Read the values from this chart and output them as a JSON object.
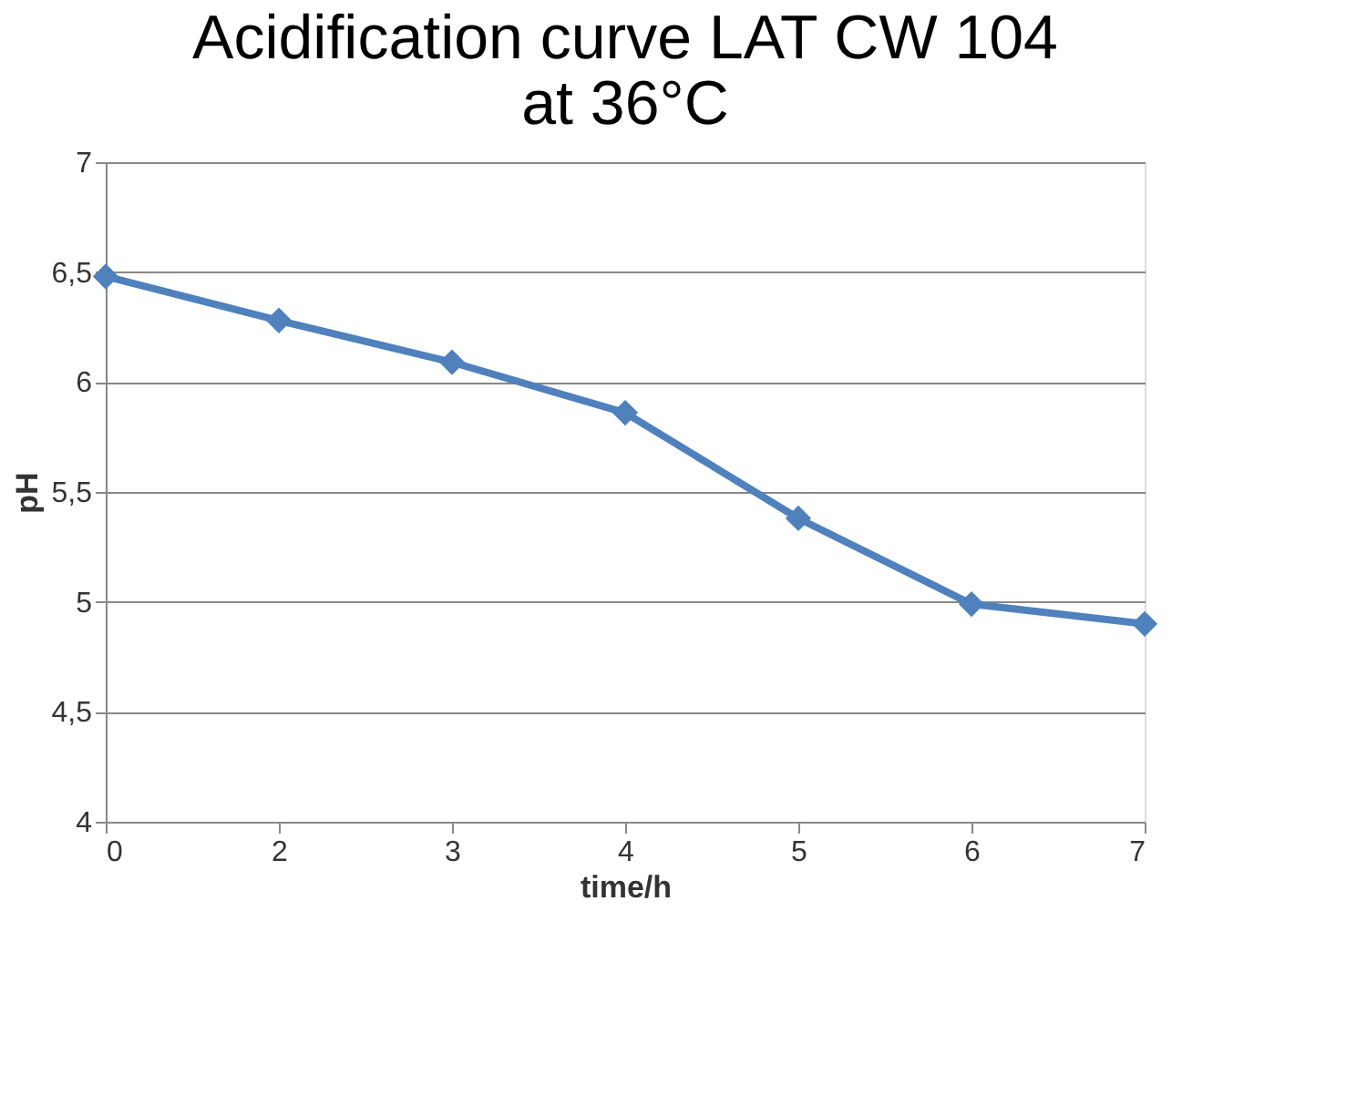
{
  "chart_data": {
    "type": "line",
    "title": "Acidification curve LAT CW 104\nat 36°C",
    "xlabel": "time/h",
    "ylabel": "pH",
    "categories": [
      "0",
      "2",
      "3",
      "4",
      "5",
      "6",
      "7"
    ],
    "series": [
      {
        "color": "#4f81bd",
        "values": [
          6.48,
          6.28,
          6.09,
          5.86,
          5.38,
          4.99,
          4.9
        ]
      }
    ],
    "ylim": [
      4,
      7
    ],
    "yticks": [
      4,
      {
        "value": 4.5,
        "label": "4,5"
      },
      5,
      {
        "value": 5.5,
        "label": "5,5"
      },
      6,
      {
        "value": 6.5,
        "label": "6,5"
      },
      7
    ],
    "grid": "y",
    "marker": "diamond",
    "line_style": "solid"
  }
}
